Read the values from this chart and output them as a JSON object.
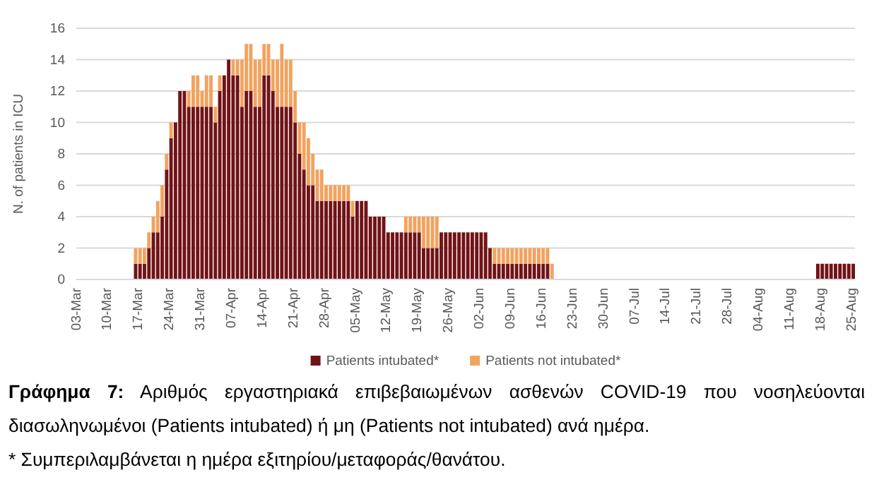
{
  "chart_data": {
    "type": "bar",
    "stacked": true,
    "ylabel": "N. of patients in ICU",
    "ylim": [
      0,
      16
    ],
    "yticks": [
      0,
      2,
      4,
      6,
      8,
      10,
      12,
      14,
      16
    ],
    "grid": "y",
    "legend": "bottom",
    "categories": [
      "03-Mar",
      null,
      null,
      null,
      null,
      null,
      null,
      "10-Mar",
      null,
      null,
      null,
      null,
      null,
      null,
      "17-Mar",
      null,
      null,
      null,
      null,
      null,
      null,
      "24-Mar",
      null,
      null,
      null,
      null,
      null,
      null,
      "31-Mar",
      null,
      null,
      null,
      null,
      null,
      null,
      "07-Apr",
      null,
      null,
      null,
      null,
      null,
      null,
      "14-Apr",
      null,
      null,
      null,
      null,
      null,
      null,
      "21-Apr",
      null,
      null,
      null,
      null,
      null,
      null,
      "28-Apr",
      null,
      null,
      null,
      null,
      null,
      null,
      "05-May",
      null,
      null,
      null,
      null,
      null,
      null,
      "12-May",
      null,
      null,
      null,
      null,
      null,
      null,
      "19-May",
      null,
      null,
      null,
      null,
      null,
      null,
      "26-May",
      null,
      null,
      null,
      null,
      null,
      null,
      "02-Jun",
      null,
      null,
      null,
      null,
      null,
      null,
      "09-Jun",
      null,
      null,
      null,
      null,
      null,
      null,
      "16-Jun",
      null,
      null,
      null,
      null,
      null,
      null,
      "23-Jun",
      null,
      null,
      null,
      null,
      null,
      null,
      "30-Jun",
      null,
      null,
      null,
      null,
      null,
      null,
      "07-Jul",
      null,
      null,
      null,
      null,
      null,
      null,
      "14-Jul",
      null,
      null,
      null,
      null,
      null,
      null,
      "21-Jul",
      null,
      null,
      null,
      null,
      null,
      null,
      "28-Jul",
      null,
      null,
      null,
      null,
      null,
      null,
      "04-Aug",
      null,
      null,
      null,
      null,
      null,
      null,
      "11-Aug",
      null,
      null,
      null,
      null,
      null,
      null,
      "18-Aug",
      null,
      null,
      null,
      null,
      null,
      null,
      "25-Aug"
    ],
    "series": [
      {
        "name": "Patients intubated*",
        "color": "#701317",
        "values": [
          0,
          0,
          0,
          0,
          0,
          0,
          0,
          0,
          0,
          0,
          0,
          0,
          0,
          1,
          1,
          1,
          2,
          3,
          3,
          4,
          7,
          9,
          10,
          12,
          12,
          11,
          11,
          11,
          11,
          11,
          11,
          10,
          12,
          13,
          14,
          13,
          13,
          11,
          12,
          12,
          11,
          11,
          13,
          13,
          12,
          11,
          11,
          11,
          11,
          10,
          8,
          7,
          6,
          6,
          5,
          5,
          5,
          5,
          5,
          5,
          5,
          5,
          4,
          5,
          5,
          5,
          4,
          4,
          4,
          4,
          3,
          3,
          3,
          3,
          3,
          3,
          3,
          3,
          2,
          2,
          2,
          2,
          3,
          3,
          3,
          3,
          3,
          3,
          3,
          3,
          3,
          3,
          3,
          2,
          1,
          1,
          1,
          1,
          1,
          1,
          1,
          1,
          1,
          1,
          1,
          1,
          1,
          0,
          0,
          0,
          0,
          0,
          0,
          0,
          0,
          0,
          0,
          0,
          0,
          0,
          0,
          0,
          0,
          0,
          0,
          0,
          0,
          0,
          0,
          0,
          0,
          0,
          0,
          0,
          0,
          0,
          0,
          0,
          0,
          0,
          0,
          0,
          0,
          0,
          0,
          0,
          0,
          0,
          0,
          0,
          0,
          0,
          0,
          0,
          0,
          0,
          0,
          0,
          0,
          0,
          0,
          0,
          0,
          0,
          0,
          0,
          0,
          1,
          1,
          1,
          1,
          1,
          1,
          1,
          1,
          1
        ]
      },
      {
        "name": "Patients not intubated*",
        "color": "#f2a35f",
        "values": [
          0,
          0,
          0,
          0,
          0,
          0,
          0,
          0,
          0,
          0,
          0,
          0,
          0,
          1,
          1,
          1,
          1,
          1,
          2,
          2,
          1,
          1,
          0,
          0,
          0,
          1,
          2,
          2,
          1,
          2,
          2,
          1,
          1,
          0,
          0,
          1,
          1,
          3,
          3,
          3,
          3,
          3,
          2,
          2,
          2,
          3,
          4,
          3,
          3,
          2,
          2,
          3,
          3,
          2,
          2,
          2,
          1,
          1,
          1,
          1,
          1,
          1,
          1,
          0,
          0,
          0,
          0,
          0,
          0,
          0,
          0,
          0,
          0,
          0,
          1,
          1,
          1,
          1,
          2,
          2,
          2,
          2,
          0,
          0,
          0,
          0,
          0,
          0,
          0,
          0,
          0,
          0,
          0,
          0,
          1,
          1,
          1,
          1,
          1,
          1,
          1,
          1,
          1,
          1,
          1,
          1,
          1,
          1,
          0,
          0,
          0,
          0,
          0,
          0,
          0,
          0,
          0,
          0,
          0,
          0,
          0,
          0,
          0,
          0,
          0,
          0,
          0,
          0,
          0,
          0,
          0,
          0,
          0,
          0,
          0,
          0,
          0,
          0,
          0,
          0,
          0,
          0,
          0,
          0,
          0,
          0,
          0,
          0,
          0,
          0,
          0,
          0,
          0,
          0,
          0,
          0,
          0,
          0,
          0,
          0,
          0,
          0,
          0,
          0,
          0,
          0,
          0,
          0,
          0,
          0,
          0,
          0,
          0,
          0,
          0,
          0
        ]
      }
    ],
    "annotations": [
      "Γράφημα 7:",
      "Αριθμός εργαστηριακά επιβεβαιωμένων ασθενών COVID-19 που νοσηλεύονται διασωληνωμένοι (Patients intubated) ή μη (Patients not intubated) ανά ημέρα.",
      "* Συμπεριλαμβάνεται η ημέρα εξιτηρίου/μεταφοράς/θανάτου."
    ]
  }
}
